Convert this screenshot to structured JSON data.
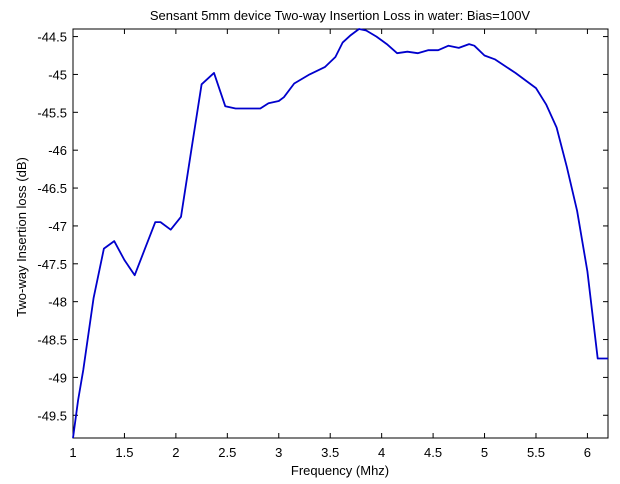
{
  "chart_data": {
    "type": "line",
    "title": "Sensant 5mm device Two-way Insertion Loss in water:  Bias=100V",
    "xlabel": "Frequency (Mhz)",
    "ylabel": "Two-way Insertion loss (dB)",
    "xlim": [
      1,
      6.2
    ],
    "ylim": [
      -49.8,
      -44.4
    ],
    "xticks": [
      1,
      1.5,
      2,
      2.5,
      3,
      3.5,
      4,
      4.5,
      5,
      5.5,
      6
    ],
    "xtick_labels": [
      "1",
      "1.5",
      "2",
      "2.5",
      "3",
      "3.5",
      "4",
      "4.5",
      "5",
      "5.5",
      "6"
    ],
    "yticks": [
      -44.5,
      -45,
      -45.5,
      -46,
      -46.5,
      -47,
      -47.5,
      -48,
      -48.5,
      -49,
      -49.5
    ],
    "ytick_labels": [
      "-44.5",
      "-45",
      "-45.5",
      "-46",
      "-46.5",
      "-47",
      "-47.5",
      "-48",
      "-48.5",
      "-49",
      "-49.5"
    ],
    "grid": false,
    "colors": {
      "line": "#0000cc",
      "axes": "#000000",
      "background": "#ffffff"
    },
    "series": [
      {
        "x": [
          1.0,
          1.05,
          1.1,
          1.2,
          1.3,
          1.4,
          1.5,
          1.6,
          1.7,
          1.8,
          1.85,
          1.95,
          2.05,
          2.15,
          2.25,
          2.37,
          2.48,
          2.58,
          2.7,
          2.82,
          2.9,
          3.0,
          3.05,
          3.15,
          3.3,
          3.45,
          3.55,
          3.62,
          3.7,
          3.78,
          3.85,
          3.95,
          4.05,
          4.15,
          4.25,
          4.35,
          4.45,
          4.55,
          4.65,
          4.75,
          4.85,
          4.9,
          5.0,
          5.1,
          5.3,
          5.5,
          5.6,
          5.7,
          5.8,
          5.9,
          6.0,
          6.1,
          6.2
        ],
        "y": [
          -49.8,
          -49.3,
          -48.9,
          -47.95,
          -47.3,
          -47.2,
          -47.45,
          -47.65,
          -47.3,
          -46.95,
          -46.95,
          -47.05,
          -46.88,
          -46.0,
          -45.13,
          -44.98,
          -45.42,
          -45.45,
          -45.45,
          -45.45,
          -45.38,
          -45.35,
          -45.3,
          -45.12,
          -45.0,
          -44.9,
          -44.77,
          -44.58,
          -44.48,
          -44.4,
          -44.42,
          -44.5,
          -44.6,
          -44.72,
          -44.7,
          -44.72,
          -44.68,
          -44.68,
          -44.62,
          -44.65,
          -44.6,
          -44.62,
          -44.75,
          -44.8,
          -44.98,
          -45.18,
          -45.4,
          -45.7,
          -46.22,
          -46.8,
          -47.6,
          -48.75,
          -48.75
        ]
      }
    ]
  }
}
